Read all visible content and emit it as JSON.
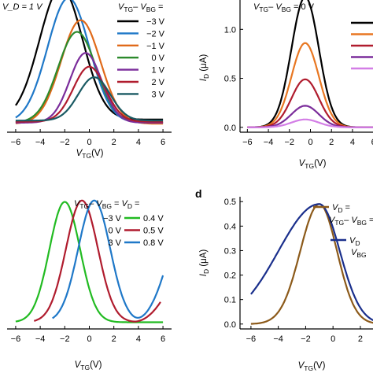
{
  "chart_data": [
    {
      "type": "line",
      "note_text": "V_D = 1 V",
      "legend_title": {
        "a": "V",
        "a_sub": "TG",
        "mid": "– ",
        "b": "V",
        "b_sub": "BG",
        "end": " ="
      },
      "xlabel": {
        "main": "V",
        "sub": "TG",
        "unit": "(V)"
      },
      "ylabel": "",
      "xlim": [
        -6.7,
        6.7
      ],
      "ylim": [
        0,
        1.4
      ],
      "x_ticks": [
        -6,
        -4,
        -2,
        0,
        2,
        4,
        6
      ],
      "x_tick_labels": [
        "−6",
        "−4",
        "−2",
        "0",
        "2",
        "4",
        "6"
      ],
      "series": [
        {
          "name": "−3 V",
          "color": "#000000",
          "peak_x": -2.3,
          "peak_y": 1.37,
          "width": 1.75,
          "base": 0.12
        },
        {
          "name": "−2 V",
          "color": "#1f78c8",
          "peak_x": -1.7,
          "peak_y": 1.27,
          "width": 1.7,
          "base": 0.09
        },
        {
          "name": "−1 V",
          "color": "#e06a1a",
          "peak_x": -0.7,
          "peak_y": 1.06,
          "width": 1.6,
          "base": 0.08
        },
        {
          "name": "0 V",
          "color": "#2c8a2c",
          "peak_x": -1.0,
          "peak_y": 0.95,
          "width": 1.55,
          "base": 0.09
        },
        {
          "name": "1 V",
          "color": "#7b2d9b",
          "peak_x": -0.3,
          "peak_y": 0.75,
          "width": 1.3,
          "base": 0.09
        },
        {
          "name": "2 V",
          "color": "#b01c2e",
          "peak_x": 0.0,
          "peak_y": 0.62,
          "width": 1.3,
          "base": 0.1
        },
        {
          "name": "3 V",
          "color": "#1a5a63",
          "peak_x": 0.4,
          "peak_y": 0.52,
          "width": 1.3,
          "base": 0.11
        }
      ]
    },
    {
      "type": "line",
      "legend_title": {
        "a": "V",
        "a_sub": "TG",
        "mid": "– ",
        "b": "V",
        "b_sub": "BG",
        "end": " = 0 V"
      },
      "xlabel": {
        "main": "V",
        "sub": "TG",
        "unit": "(V)"
      },
      "ylabel": {
        "main": "I",
        "sub": "D",
        "unit": " (μA)"
      },
      "xlim": [
        -6.7,
        6.7
      ],
      "ylim": [
        -0.05,
        1.38
      ],
      "x_ticks": [
        -6,
        -4,
        -2,
        0,
        2,
        4,
        6
      ],
      "x_tick_labels": [
        "−6",
        "−4",
        "−2",
        "0",
        "2",
        "4",
        "6"
      ],
      "y_ticks": [
        0.0,
        0.5,
        1.0
      ],
      "y_tick_labels": [
        "0.0",
        "0.5",
        "1.0"
      ],
      "series": [
        {
          "color": "#000000",
          "peak_x": -0.5,
          "peak_y": 1.33,
          "width": 1.3,
          "base": 0.0
        },
        {
          "color": "#e87722",
          "peak_x": -0.5,
          "peak_y": 0.86,
          "width": 1.3,
          "base": 0.0
        },
        {
          "color": "#b01c2e",
          "peak_x": -0.5,
          "peak_y": 0.49,
          "width": 1.3,
          "base": 0.0
        },
        {
          "color": "#7b2d9b",
          "peak_x": -0.5,
          "peak_y": 0.22,
          "width": 1.3,
          "base": 0.0
        },
        {
          "color": "#d37ee6",
          "peak_x": -0.5,
          "peak_y": 0.08,
          "width": 1.3,
          "base": 0.0
        }
      ]
    },
    {
      "type": "line",
      "legend_title": {
        "a": "V",
        "a_sub": "TG",
        "mid": "– ",
        "b": "V",
        "b_sub": "BG",
        "end": " = ",
        "c": "V",
        "c_sub": "D",
        "c_end": " ="
      },
      "legend_rows": [
        {
          "left": "−3 V",
          "right": "0.4 V",
          "color": "#22bb22"
        },
        {
          "left": "0 V",
          "right": "0.5 V",
          "color": "#b01c2e"
        },
        {
          "left": "3 V",
          "right": "0.8 V",
          "color": "#1f78c8"
        }
      ],
      "xlabel": {
        "main": "V",
        "sub": "TG",
        "unit": "(V)"
      },
      "ylabel": "",
      "xlim": [
        -6.7,
        6.7
      ],
      "ylim": [
        0,
        1.0
      ],
      "x_ticks": [
        -6,
        -4,
        -2,
        0,
        2,
        4,
        6
      ],
      "x_tick_labels": [
        "−6",
        "−4",
        "−2",
        "0",
        "2",
        "4",
        "6"
      ],
      "series": [
        {
          "color": "#22bb22",
          "x_start": -6.0,
          "x_end": 6.0,
          "peak_x": -2.0,
          "peak_y": 0.95,
          "width": 1.25,
          "base": 0.05,
          "tail": 0.0
        },
        {
          "color": "#b01c2e",
          "x_start": -4.5,
          "x_end": 5.8,
          "peak_x": -0.6,
          "peak_y": 0.96,
          "width": 1.3,
          "base": 0.05,
          "tail": 0.18
        },
        {
          "color": "#1f78c8",
          "x_start": -3.0,
          "x_end": 6.0,
          "peak_x": 0.4,
          "peak_y": 0.96,
          "width": 1.3,
          "base": 0.05,
          "tail": 0.35
        }
      ]
    },
    {
      "type": "line",
      "panel_label": "d",
      "legend_rows": [
        {
          "color": "#8c5a1a",
          "text": {
            "a": "V",
            "a_sub": "D",
            "end": " ="
          }
        },
        {
          "color": "",
          "text": {
            "a": "V",
            "a_sub": "TG",
            "mid": "– ",
            "b": "V",
            "b_sub": "BG",
            "end": " ="
          }
        },
        {
          "color": "#1a2f8c",
          "text": {
            "a": "V",
            "a_sub": "D",
            "end": ""
          }
        },
        {
          "color": "",
          "text": {
            "a": "V",
            "a_sub": "BG",
            "end": ""
          }
        }
      ],
      "xlabel": {
        "main": "V",
        "sub": "TG",
        "unit": "(V)"
      },
      "ylabel": {
        "main": "I",
        "sub": "D",
        "unit": " (μA)"
      },
      "xlim": [
        -6.8,
        3.5
      ],
      "ylim": [
        -0.02,
        0.52
      ],
      "x_ticks": [
        -6,
        -4,
        -2,
        0,
        2
      ],
      "x_tick_labels": [
        "−6",
        "−4",
        "−2",
        "0",
        "2"
      ],
      "y_ticks": [
        0.0,
        0.1,
        0.2,
        0.3,
        0.4,
        0.5
      ],
      "y_tick_labels": [
        "0.0",
        "0.1",
        "0.2",
        "0.3",
        "0.4",
        "0.5"
      ],
      "series": [
        {
          "color": "#8c5a1a",
          "x_start": -6.0,
          "x_end": 3.5,
          "peak_x": -1.0,
          "peak_y": 0.49,
          "width_left": 1.4,
          "width_right": 1.3,
          "base": 0.0
        },
        {
          "color": "#1a2f8c",
          "x_start": -6.0,
          "x_end": 3.5,
          "peak_x": -1.0,
          "peak_y": 0.49,
          "width_left": 3.0,
          "width_right": 1.5,
          "base": 0.0
        }
      ]
    }
  ]
}
